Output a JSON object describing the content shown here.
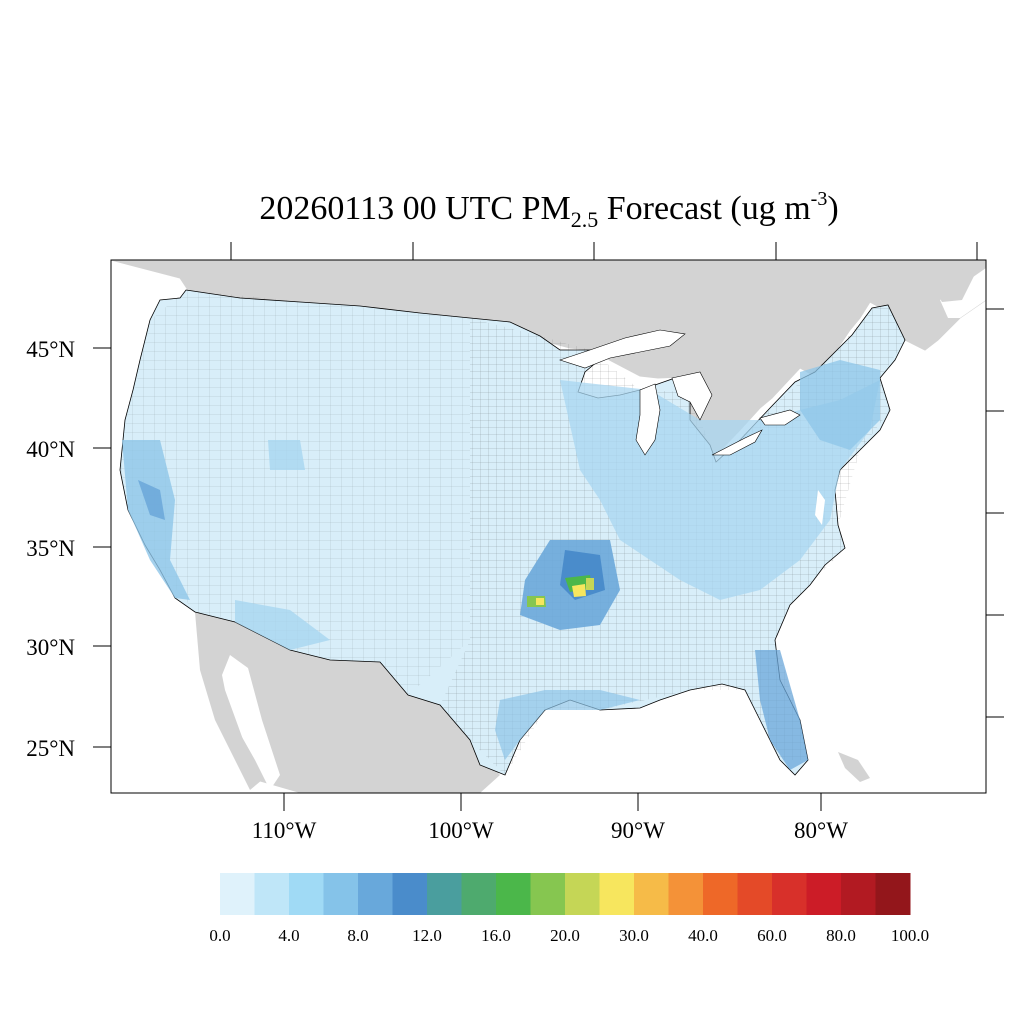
{
  "title": {
    "main": "20260113 00 UTC PM",
    "subscript": "2.5",
    "suffix": " Forecast (ug m",
    "superscript": "-3",
    "close": ")"
  },
  "lat_labels": [
    "45°N",
    "40°N",
    "35°N",
    "30°N",
    "25°N"
  ],
  "lon_labels": [
    "110°W",
    "100°W",
    "90°W",
    "80°W"
  ],
  "colorbar": {
    "colors": [
      "#dff2fb",
      "#bfe6f8",
      "#a0daf5",
      "#85c3e9",
      "#68a8db",
      "#4a8ccb",
      "#4a9e9e",
      "#4eaa6e",
      "#4bb74a",
      "#86c650",
      "#c5d656",
      "#f7e65e",
      "#f6bb48",
      "#f49238",
      "#ee6828",
      "#e44a28",
      "#d8302a",
      "#cc1c27",
      "#b21a22",
      "#93161b"
    ],
    "tick_labels": [
      "0.0",
      "4.0",
      "8.0",
      "12.0",
      "16.0",
      "20.0",
      "30.0",
      "40.0",
      "60.0",
      "80.0",
      "100.0"
    ]
  },
  "map_colors": {
    "ocean": "#ffffff",
    "land_outside": "#d3d3d3",
    "us_base": "#d8eef9",
    "low_moderate": "#a8d6f0",
    "moderate": "#8ec5e8",
    "elevated": "#6ba7d9",
    "high": "#4a8ccb",
    "hot_green": "#4bb74a",
    "hot_lightgreen": "#86c650",
    "hot_yellow": "#f7e65e",
    "hot_lime": "#c5d656"
  }
}
